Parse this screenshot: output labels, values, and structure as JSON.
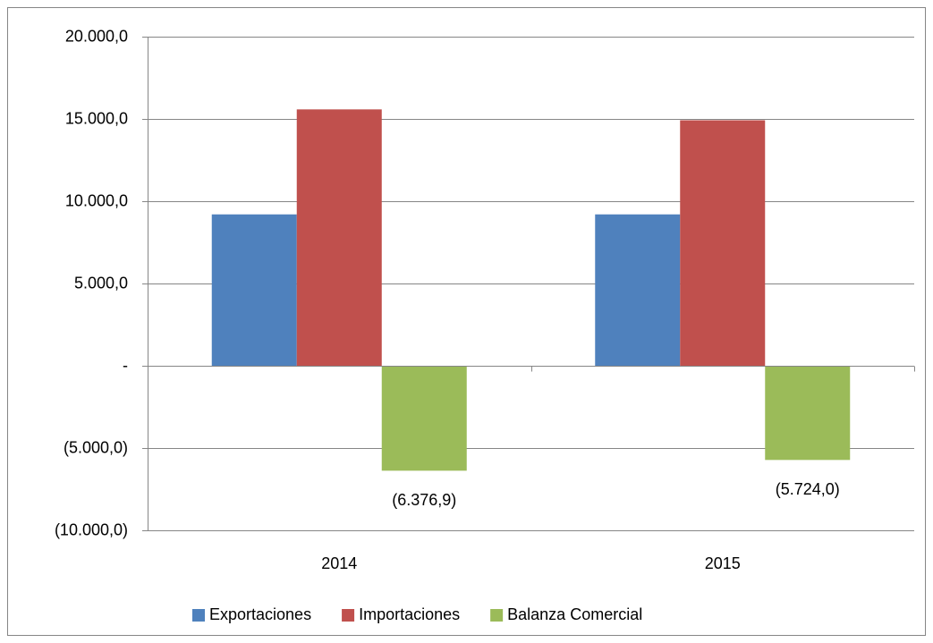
{
  "chart_data": {
    "type": "bar",
    "categories": [
      "2014",
      "2015"
    ],
    "series": [
      {
        "name": "Exportaciones",
        "color": "#4f81bd",
        "values": [
          9200,
          9200
        ]
      },
      {
        "name": "Importaciones",
        "color": "#c0504d",
        "values": [
          15580,
          14920
        ]
      },
      {
        "name": "Balanza Comercial",
        "color": "#9bbb59",
        "values": [
          -6376.9,
          -5724.0
        ],
        "value_labels": [
          "(6.376,9)",
          "(5.724,0)"
        ]
      }
    ],
    "ylim": [
      -10000,
      20000
    ],
    "yticks": [
      {
        "value": -10000,
        "label": "(10.000,0)"
      },
      {
        "value": -5000,
        "label": "(5.000,0)"
      },
      {
        "value": 0,
        "label": "-"
      },
      {
        "value": 5000,
        "label": "5.000,0"
      },
      {
        "value": 10000,
        "label": "10.000,0"
      },
      {
        "value": 15000,
        "label": "15.000,0"
      },
      {
        "value": 20000,
        "label": "20.000,0"
      }
    ],
    "grid": true,
    "legend": "bottom"
  }
}
